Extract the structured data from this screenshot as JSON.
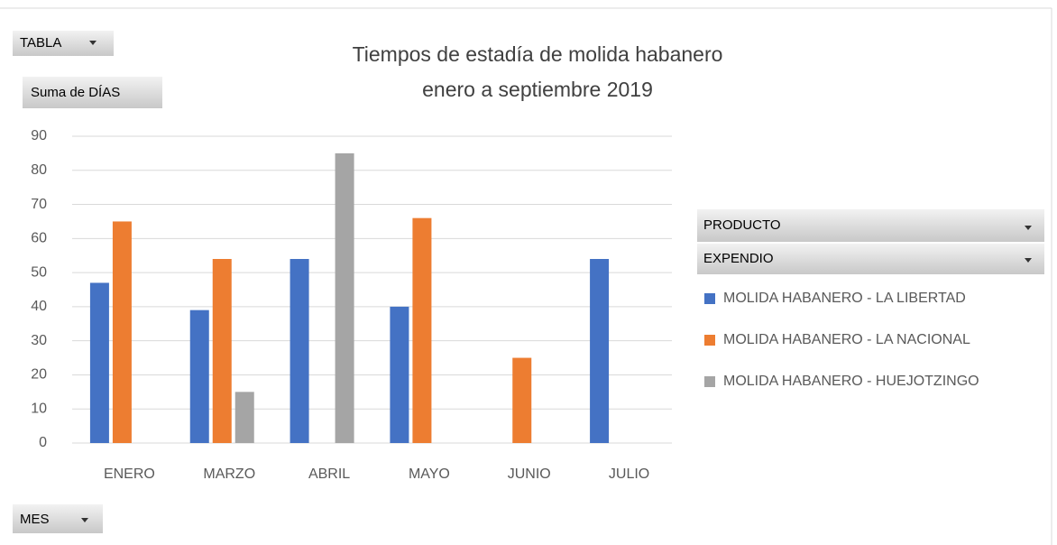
{
  "chart_data": {
    "type": "bar",
    "title": [
      "Tiempos de estadía de molida habanero",
      "enero a septiembre 2019"
    ],
    "filter_field": "TABLA",
    "value_field": "Suma de DÍAS",
    "axis_field": "MES",
    "legend_fields": [
      "PRODUCTO",
      "EXPENDIO"
    ],
    "categories": [
      "ENERO",
      "MARZO",
      "ABRIL",
      "MAYO",
      "JUNIO",
      "JULIO"
    ],
    "series": [
      {
        "name": "MOLIDA HABANERO - LA LIBERTAD",
        "color": "#4472c4",
        "values": [
          47,
          39,
          54,
          40,
          null,
          54
        ]
      },
      {
        "name": "MOLIDA HABANERO - LA NACIONAL",
        "color": "#ed7d31",
        "values": [
          65,
          54,
          null,
          66,
          25,
          null
        ]
      },
      {
        "name": "MOLIDA HABANERO - HUEJOTZINGO",
        "color": "#a5a5a5",
        "values": [
          null,
          15,
          85,
          null,
          null,
          null
        ]
      }
    ],
    "ylim": [
      0,
      90
    ],
    "yticks": [
      0,
      10,
      20,
      30,
      40,
      50,
      60,
      70,
      80,
      90
    ],
    "grid": true
  }
}
